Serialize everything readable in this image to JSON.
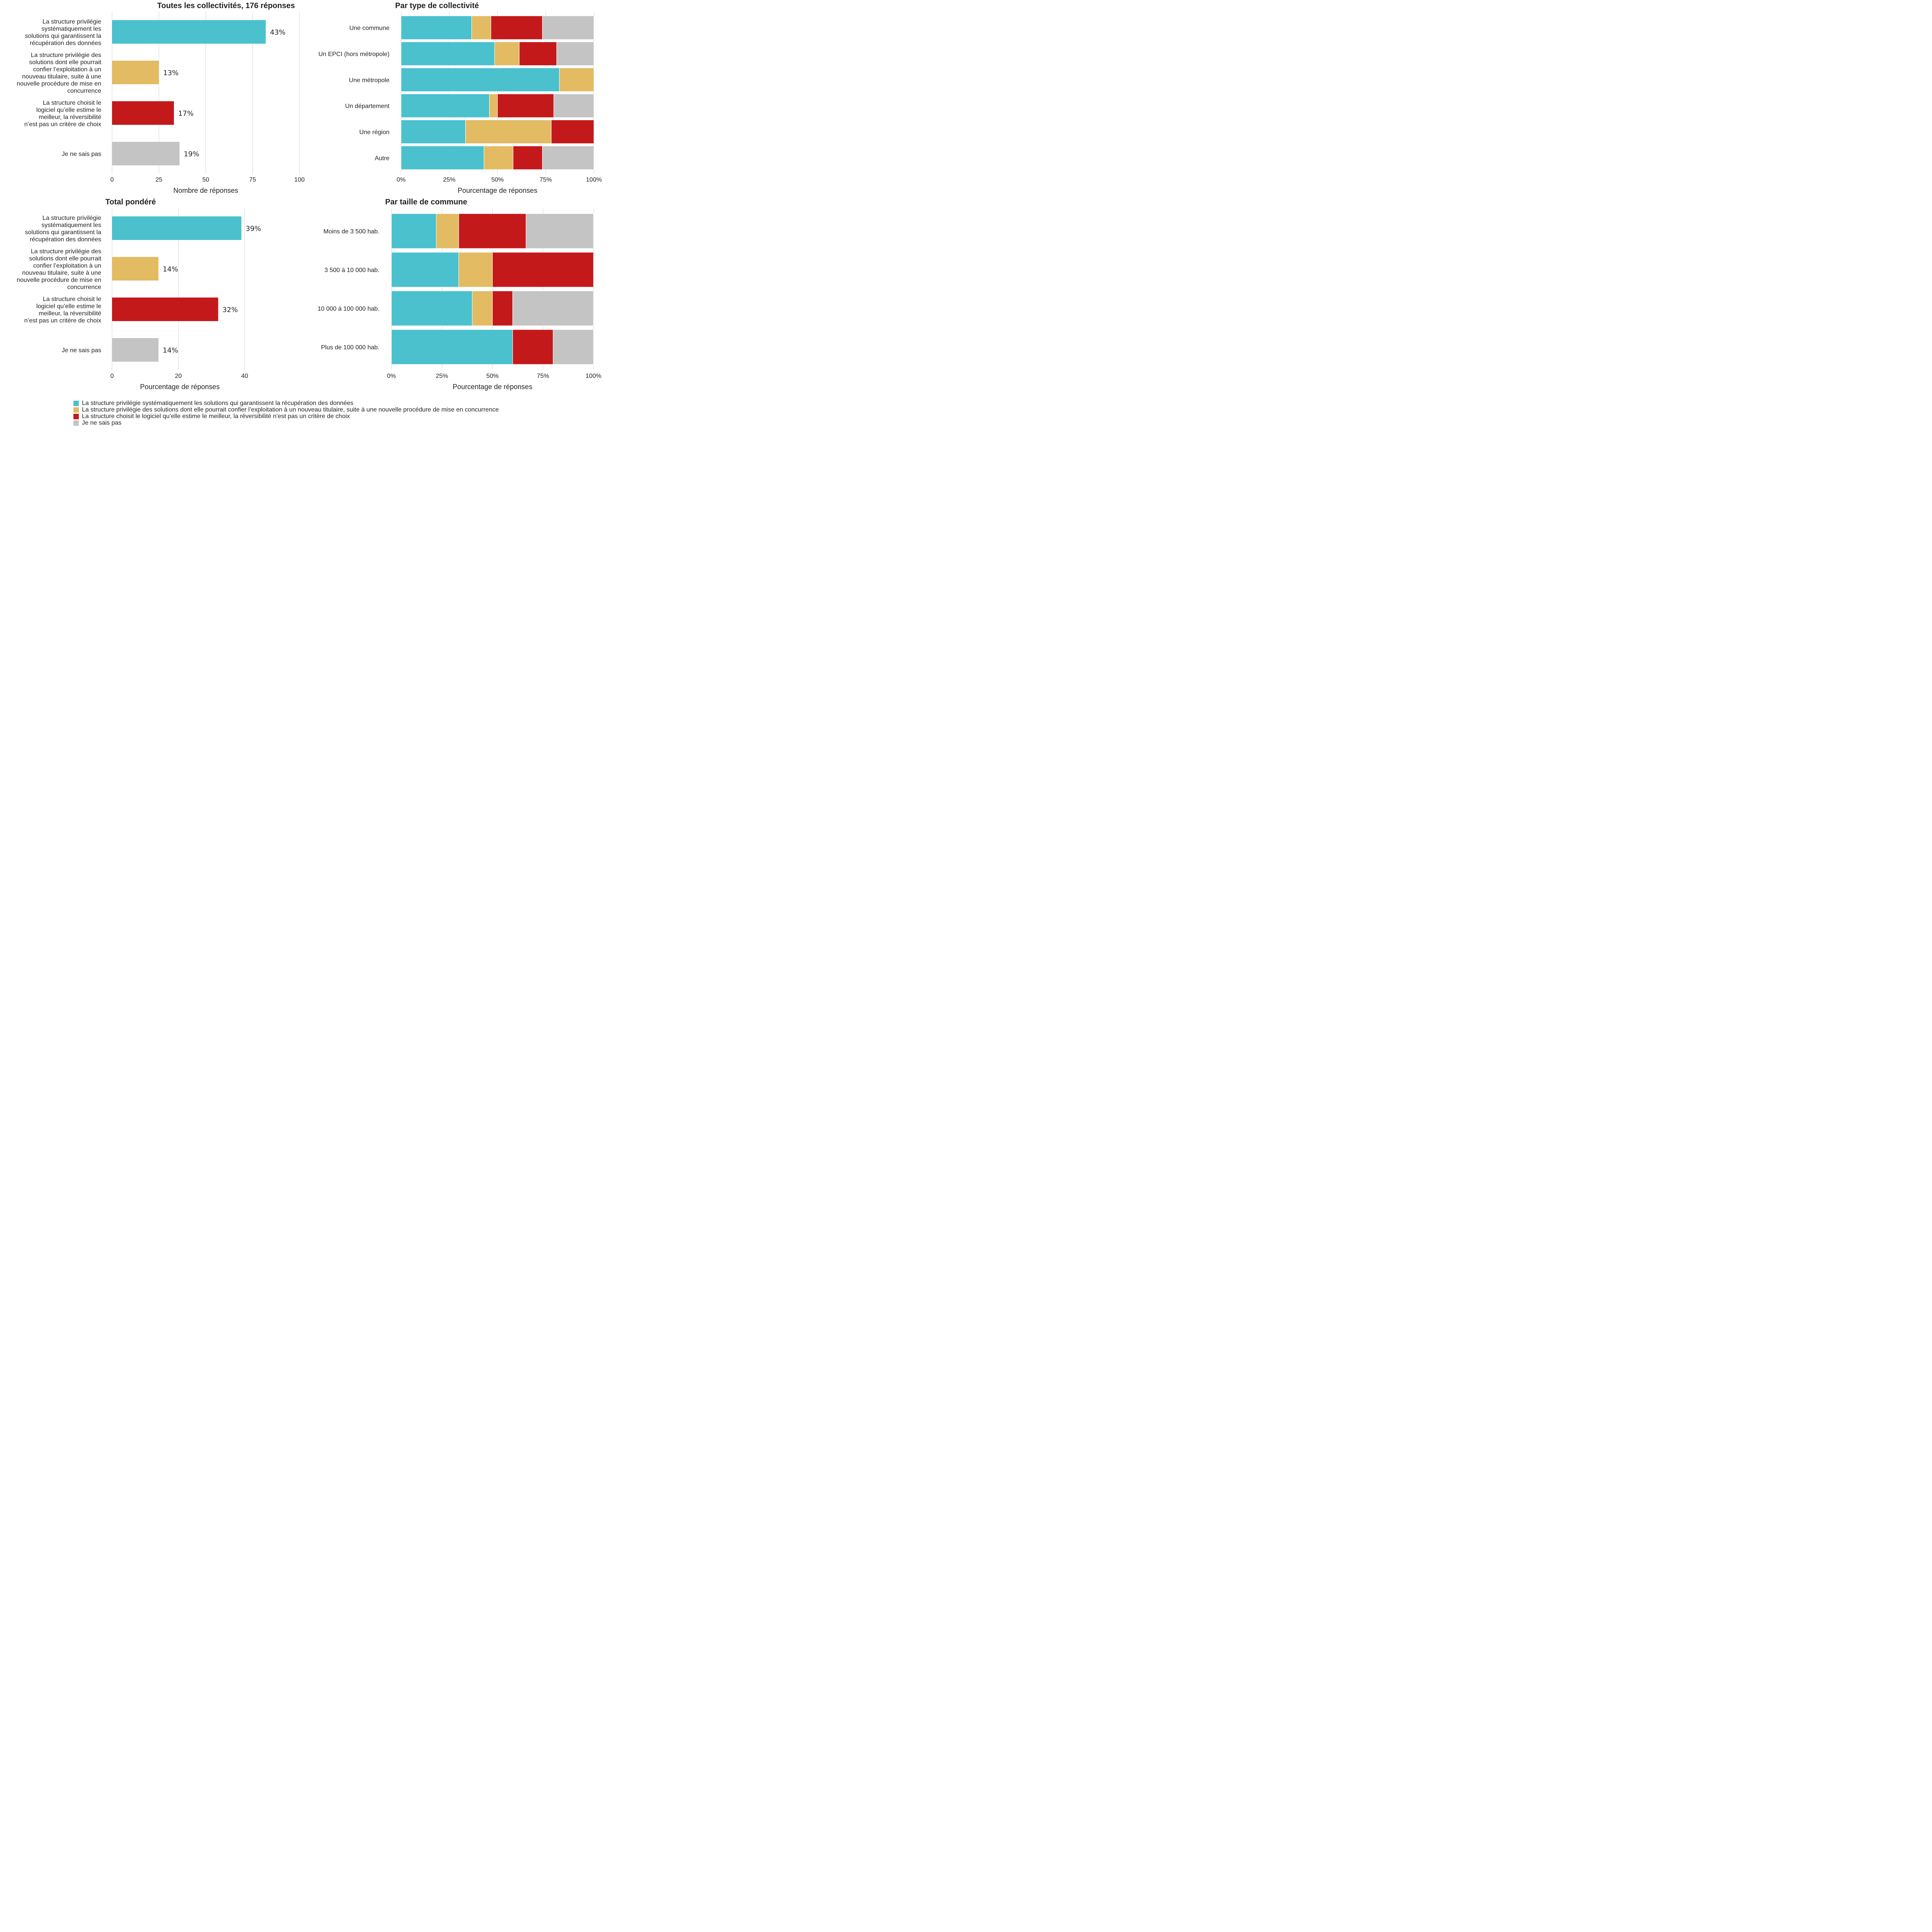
{
  "colors": {
    "systematique": "#4AC1CD",
    "nouveau_titulaire": "#E3BB62",
    "meilleur_logiciel": "#C4191B",
    "ne_sais_pas": "#C4C4C4",
    "grid": "#D6D6D6",
    "text": "#222222"
  },
  "legend": {
    "items": [
      {
        "key": "systematique",
        "label": "La structure privilégie systématiquement les solutions qui garantissent la récupération des données"
      },
      {
        "key": "nouveau_titulaire",
        "label": "La structure privilégie des solutions dont elle pourrait confier l’exploitation à un nouveau titulaire, suite à une nouvelle procédure de mise en concurrence"
      },
      {
        "key": "meilleur_logiciel",
        "label": "La structure choisit le logiciel qu’elle estime le meilleur, la réversibilité n’est pas un critère de choix"
      },
      {
        "key": "ne_sais_pas",
        "label": "Je ne sais pas"
      }
    ]
  },
  "chart_data": [
    {
      "id": "toutes",
      "type": "bar",
      "orientation": "horizontal",
      "title": "Toutes les collectivités, 176 réponses",
      "xlabel": "Nombre de réponses",
      "ylabel": "",
      "categories": [
        [
          "La structure privilégie",
          "systématiquement les",
          "solutions qui garantissent la",
          "récupération des données"
        ],
        [
          "La structure privilégie des",
          "solutions dont elle pourrait",
          "confier l’exploitation à un",
          "nouveau titulaire, suite à une",
          "nouvelle procédure de mise en",
          "concurrence"
        ],
        [
          "La structure choisit le",
          "logiciel qu’elle estime le",
          "meilleur, la réversibilité",
          "n’est pas un critère de choix"
        ],
        [
          "Je ne sais pas"
        ]
      ],
      "color_keys": [
        "systematique",
        "nouveau_titulaire",
        "meilleur_logiciel",
        "ne_sais_pas"
      ],
      "values": [
        82,
        25,
        33,
        36
      ],
      "data_labels": [
        "43%",
        "13%",
        "17%",
        "19%"
      ],
      "xlim": [
        0,
        100
      ],
      "xticks": [
        0,
        25,
        50,
        75,
        100
      ],
      "xtick_labels": [
        "0",
        "25",
        "50",
        "75",
        "100"
      ],
      "grid": true
    },
    {
      "id": "par_type",
      "type": "bar",
      "orientation": "horizontal",
      "stacked": true,
      "title": "Par type de collectivité",
      "xlabel": "Pourcentage de réponses",
      "ylabel": "",
      "categories": [
        "Une commune",
        "Un EPCI (hors métropole)",
        "Une métropole",
        "Un département",
        "Une région",
        "Autre"
      ],
      "series": [
        {
          "key": "systematique",
          "values": [
            36.6,
            48.5,
            82.1,
            45.8,
            33.4,
            43.0
          ]
        },
        {
          "key": "nouveau_titulaire",
          "values": [
            10.0,
            12.8,
            17.9,
            4.2,
            44.5,
            15.1
          ]
        },
        {
          "key": "meilleur_logiciel",
          "values": [
            26.7,
            19.4,
            0,
            29.2,
            22.1,
            15.2
          ]
        },
        {
          "key": "ne_sais_pas",
          "values": [
            26.7,
            19.3,
            0,
            20.8,
            0,
            26.7
          ]
        }
      ],
      "xlim": [
        0,
        100
      ],
      "xticks": [
        0,
        25,
        50,
        75,
        100
      ],
      "xtick_labels": [
        "0%",
        "25%",
        "50%",
        "75%",
        "100%"
      ],
      "grid": true
    },
    {
      "id": "pondere",
      "type": "bar",
      "orientation": "horizontal",
      "title": "Total pondéré",
      "xlabel": "Pourcentage de réponses",
      "ylabel": "",
      "categories": [
        [
          "La structure privilégie",
          "systématiquement les",
          "solutions qui garantissent la",
          "récupération des données"
        ],
        [
          "La structure privilégie des",
          "solutions dont elle pourrait",
          "confier l’exploitation à un",
          "nouveau titulaire, suite à une",
          "nouvelle procédure de mise en",
          "concurrence"
        ],
        [
          "La structure choisit le",
          "logiciel qu’elle estime le",
          "meilleur, la réversibilité",
          "n’est pas un critère de choix"
        ],
        [
          "Je ne sais pas"
        ]
      ],
      "color_keys": [
        "systematique",
        "nouveau_titulaire",
        "meilleur_logiciel",
        "ne_sais_pas"
      ],
      "values": [
        39,
        14,
        32,
        14
      ],
      "data_labels": [
        "39%",
        "14%",
        "32%",
        "14%"
      ],
      "xlim": [
        0,
        40.9
      ],
      "xticks": [
        0,
        20,
        40
      ],
      "xtick_labels": [
        "0",
        "20",
        "40"
      ],
      "grid": true
    },
    {
      "id": "par_taille",
      "type": "bar",
      "orientation": "horizontal",
      "stacked": true,
      "title": "Par taille de commune",
      "xlabel": "Pourcentage de réponses",
      "ylabel": "",
      "categories": [
        "Moins de 3 500 hab.",
        "3 500 à 10 000 hab.",
        "10 000 à 100 000 hab.",
        "Plus de 100 000 hab."
      ],
      "series": [
        {
          "key": "systematique",
          "values": [
            22.2,
            33.3,
            40,
            60
          ]
        },
        {
          "key": "nouveau_titulaire",
          "values": [
            11.1,
            16.7,
            10,
            0
          ]
        },
        {
          "key": "meilleur_logiciel",
          "values": [
            33.3,
            50,
            10,
            20
          ]
        },
        {
          "key": "ne_sais_pas",
          "values": [
            33.4,
            0,
            40,
            20
          ]
        }
      ],
      "xlim": [
        0,
        100
      ],
      "xticks": [
        0,
        25,
        50,
        75,
        100
      ],
      "xtick_labels": [
        "0%",
        "25%",
        "50%",
        "75%",
        "100%"
      ],
      "grid": true
    }
  ]
}
